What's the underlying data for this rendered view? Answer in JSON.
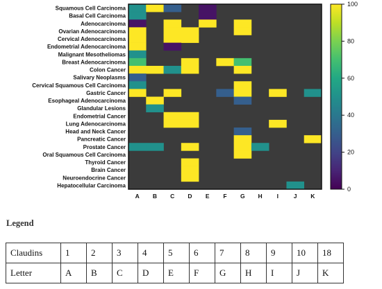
{
  "chart_data": {
    "type": "heatmap",
    "rows": [
      "Squamous Cell Carcinoma",
      "Basal Cell Carcinoma",
      "Adenocarcinoma",
      "Ovarian Adenocarcinoma",
      "Cervical Adenocarcinoma",
      "Endometrial Adenocarcinoma",
      "Malignant Mesotheliomas",
      "Breast Adenocarcinoma",
      "Colon Cancer",
      "Salivary Neoplasms",
      "Cervical Squamous Cell Carcinoma",
      "Gastric Cancer",
      "Esophageal Adenocarcinoma",
      "Glandular Lesions",
      "Endometrial Cancer",
      "Lung Adenocarcinoma",
      "Head and Neck Cancer",
      "Pancreatic Cancer",
      "Prostate Cancer",
      "Oral Squamous Cell Carcinoma",
      "Thyroid Cancer",
      "Brain Cancer",
      "Neuroendocrine Cancer",
      "Hepatocellular Carcinoma"
    ],
    "columns": [
      "A",
      "B",
      "C",
      "D",
      "E",
      "F",
      "G",
      "H",
      "I",
      "J",
      "K"
    ],
    "values": [
      [
        50,
        100,
        30,
        null,
        5,
        null,
        null,
        null,
        null,
        null,
        null
      ],
      [
        50,
        null,
        null,
        null,
        5,
        null,
        null,
        null,
        null,
        null,
        null
      ],
      [
        5,
        null,
        100,
        null,
        100,
        null,
        100,
        null,
        null,
        null,
        null
      ],
      [
        100,
        null,
        100,
        100,
        null,
        null,
        100,
        null,
        null,
        null,
        null
      ],
      [
        100,
        null,
        100,
        100,
        null,
        null,
        null,
        null,
        null,
        null,
        null
      ],
      [
        100,
        null,
        5,
        null,
        null,
        null,
        null,
        null,
        null,
        null,
        null
      ],
      [
        50,
        null,
        null,
        null,
        null,
        null,
        null,
        null,
        null,
        null,
        null
      ],
      [
        70,
        null,
        null,
        100,
        null,
        100,
        70,
        null,
        null,
        null,
        null
      ],
      [
        100,
        100,
        50,
        100,
        null,
        null,
        100,
        null,
        null,
        null,
        null
      ],
      [
        30,
        null,
        null,
        null,
        null,
        null,
        null,
        null,
        null,
        null,
        null
      ],
      [
        50,
        null,
        null,
        null,
        null,
        null,
        100,
        null,
        null,
        null,
        null
      ],
      [
        100,
        null,
        100,
        null,
        null,
        30,
        100,
        null,
        100,
        null,
        50
      ],
      [
        null,
        100,
        null,
        null,
        null,
        null,
        30,
        null,
        null,
        null,
        null
      ],
      [
        null,
        50,
        null,
        null,
        null,
        null,
        null,
        null,
        null,
        null,
        null
      ],
      [
        null,
        null,
        100,
        100,
        null,
        null,
        null,
        null,
        null,
        null,
        null
      ],
      [
        null,
        null,
        100,
        100,
        null,
        null,
        null,
        null,
        100,
        null,
        null
      ],
      [
        null,
        null,
        null,
        null,
        null,
        null,
        30,
        null,
        null,
        null,
        null
      ],
      [
        null,
        null,
        null,
        null,
        null,
        null,
        100,
        null,
        null,
        null,
        100
      ],
      [
        50,
        50,
        null,
        100,
        null,
        null,
        100,
        50,
        null,
        null,
        null
      ],
      [
        null,
        null,
        null,
        null,
        null,
        null,
        100,
        null,
        null,
        null,
        null
      ],
      [
        null,
        null,
        null,
        100,
        null,
        null,
        null,
        null,
        null,
        null,
        null
      ],
      [
        null,
        null,
        null,
        100,
        null,
        null,
        null,
        null,
        null,
        null,
        null
      ],
      [
        null,
        null,
        null,
        100,
        null,
        null,
        null,
        null,
        null,
        null,
        null
      ],
      [
        null,
        null,
        null,
        null,
        null,
        null,
        null,
        null,
        null,
        50,
        null
      ]
    ],
    "colorbar": {
      "min": 0,
      "max": 100,
      "ticks": [
        0,
        20,
        40,
        60,
        80,
        100
      ],
      "colormap": "viridis"
    },
    "background_color": "#3b3b3b"
  },
  "legend": {
    "title": "Legend",
    "row1_header": "Claudins",
    "row1": [
      "1",
      "2",
      "3",
      "4",
      "5",
      "6",
      "7",
      "8",
      "9",
      "10",
      "18"
    ],
    "row2_header": "Letter",
    "row2": [
      "A",
      "B",
      "C",
      "D",
      "E",
      "F",
      "G",
      "H",
      "I",
      "J",
      "K"
    ]
  }
}
